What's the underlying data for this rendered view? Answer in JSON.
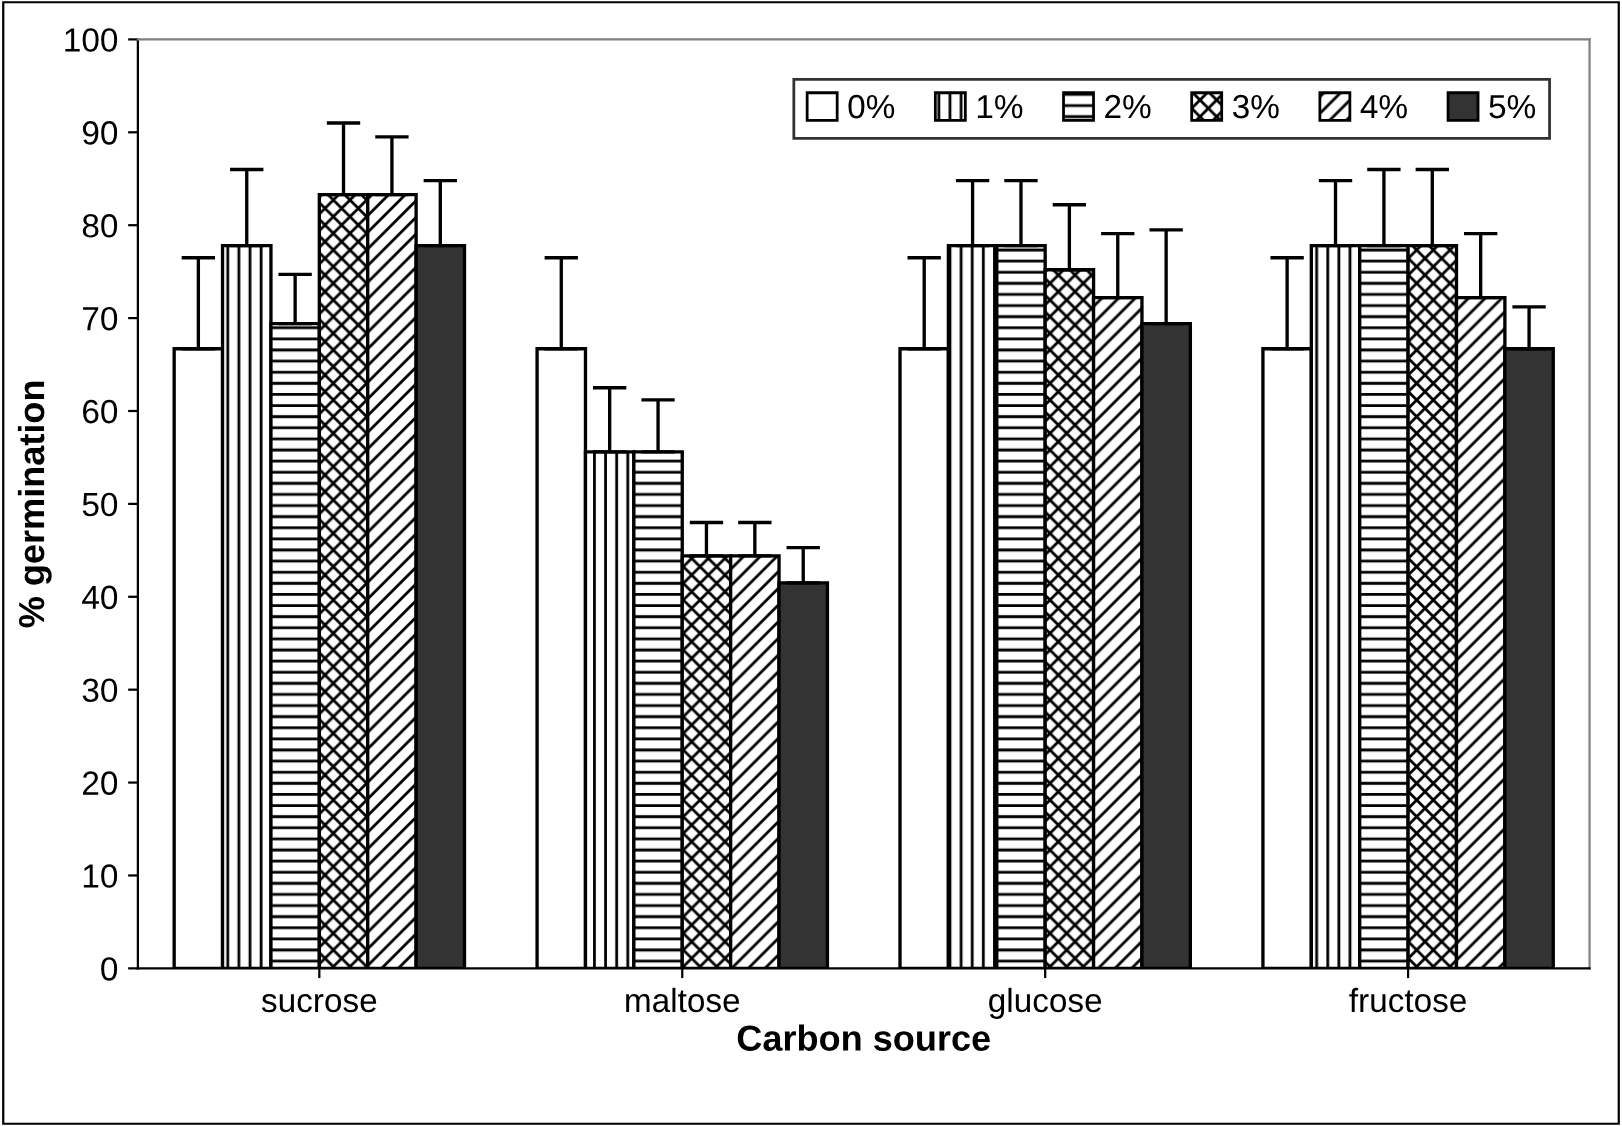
{
  "chart_data": {
    "type": "bar",
    "xlabel": "Carbon source",
    "ylabel": "% germination",
    "categories": [
      "sucrose",
      "maltose",
      "glucose",
      "fructose"
    ],
    "series": [
      {
        "name": "0%",
        "color": "#ffffff",
        "values": [
          66.7,
          66.7,
          66.7,
          66.7
        ],
        "errors": [
          [
            66.7,
            76.5
          ],
          [
            66.7,
            76.5
          ],
          [
            66.7,
            76.5
          ],
          [
            66.7,
            76.5
          ]
        ]
      },
      {
        "name": "1%",
        "color": "#000000",
        "values": [
          77.8,
          55.6,
          77.8,
          77.8
        ],
        "errors": [
          [
            77.8,
            86
          ],
          [
            55.6,
            62.5
          ],
          [
            77.8,
            84.8
          ],
          [
            77.8,
            84.8
          ]
        ]
      },
      {
        "name": "2%",
        "color": "#000000",
        "values": [
          69.4,
          55.6,
          77.8,
          77.8
        ],
        "errors": [
          [
            69.4,
            74.7
          ],
          [
            55.6,
            61.2
          ],
          [
            77.8,
            84.8
          ],
          [
            77.8,
            86
          ]
        ]
      },
      {
        "name": "3%",
        "color": "#000000",
        "values": [
          83.3,
          44.4,
          75.2,
          77.8
        ],
        "errors": [
          [
            83.3,
            91
          ],
          [
            44.4,
            48
          ],
          [
            75.2,
            82.2
          ],
          [
            77.8,
            86
          ]
        ]
      },
      {
        "name": "4%",
        "color": "#000000",
        "values": [
          83.3,
          44.4,
          72.2,
          72.2
        ],
        "errors": [
          [
            83.3,
            89.5
          ],
          [
            44.4,
            48
          ],
          [
            72.2,
            79.1
          ],
          [
            72.2,
            79.1
          ]
        ]
      },
      {
        "name": "5%",
        "color": "#333333",
        "values": [
          77.8,
          41.5,
          69.4,
          66.7
        ],
        "errors": [
          [
            77.8,
            84.8
          ],
          [
            41.5,
            45.3
          ],
          [
            69.4,
            79.5
          ],
          [
            66.7,
            71.2
          ]
        ]
      }
    ],
    "ylim": [
      0,
      100
    ],
    "yticks": [
      0,
      10,
      20,
      30,
      40,
      50,
      60,
      70,
      80,
      90,
      100
    ],
    "grid": false,
    "legend": "top right"
  }
}
